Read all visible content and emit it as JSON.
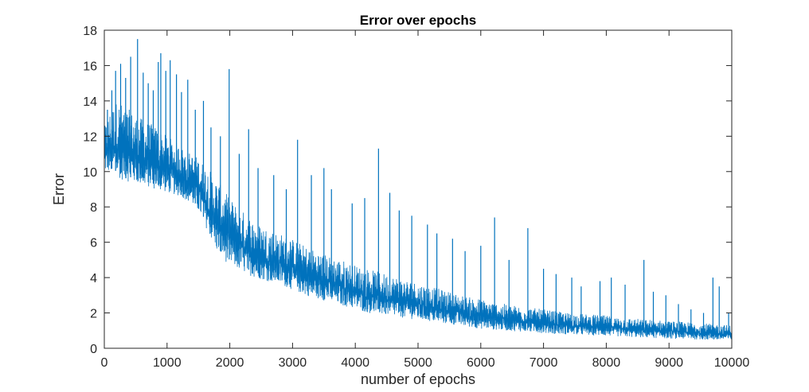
{
  "chart_data": {
    "type": "line",
    "title": "Error over epochs",
    "xlabel": "number of epochs",
    "ylabel": "Error",
    "xlim": [
      0,
      10000
    ],
    "ylim": [
      0,
      18
    ],
    "xticks": [
      0,
      1000,
      2000,
      3000,
      4000,
      5000,
      6000,
      7000,
      8000,
      9000,
      10000
    ],
    "yticks": [
      0,
      2,
      4,
      6,
      8,
      10,
      12,
      14,
      16,
      18
    ],
    "grid": false,
    "box": true,
    "series": [
      {
        "color": "#0072BD",
        "sampling_note_x": [
          0,
          100,
          200,
          300,
          400,
          500,
          600,
          700,
          800,
          900,
          1000,
          1100,
          1200,
          1300,
          1400,
          1500,
          1600,
          1700,
          1800,
          1900,
          2000,
          2200,
          2400,
          2600,
          2800,
          3000,
          3200,
          3400,
          3600,
          3800,
          4000,
          4200,
          4400,
          4600,
          4800,
          5000,
          5200,
          5400,
          5600,
          5800,
          6000,
          6200,
          6400,
          6600,
          6800,
          7000,
          7200,
          7400,
          7600,
          7800,
          8000,
          8200,
          8400,
          8600,
          8800,
          9000,
          9200,
          9400,
          9600,
          9800,
          10000
        ],
        "lower_envelope": [
          10.0,
          9.9,
          9.7,
          9.5,
          9.4,
          9.3,
          9.2,
          9.1,
          9.0,
          8.9,
          8.8,
          8.7,
          8.6,
          8.4,
          8.1,
          7.7,
          7.0,
          6.2,
          5.4,
          5.0,
          4.7,
          4.3,
          4.0,
          3.8,
          3.6,
          3.3,
          3.0,
          2.8,
          2.6,
          2.4,
          2.2,
          2.0,
          1.9,
          1.8,
          1.7,
          1.6,
          1.5,
          1.4,
          1.3,
          1.2,
          1.1,
          1.05,
          1.0,
          0.95,
          0.9,
          0.85,
          0.8,
          0.78,
          0.75,
          0.72,
          0.7,
          0.66,
          0.63,
          0.6,
          0.57,
          0.55,
          0.52,
          0.5,
          0.47,
          0.45,
          0.43
        ],
        "upper_envelope": [
          12.5,
          13.5,
          14.0,
          13.8,
          13.5,
          13.2,
          13.0,
          12.8,
          12.6,
          12.3,
          12.0,
          11.8,
          11.5,
          11.2,
          11.0,
          10.8,
          10.4,
          10.0,
          9.5,
          9.0,
          8.5,
          7.8,
          7.2,
          6.8,
          6.5,
          6.2,
          5.8,
          5.5,
          5.2,
          5.0,
          4.7,
          4.5,
          4.3,
          4.1,
          3.9,
          3.7,
          3.5,
          3.3,
          3.1,
          2.9,
          2.8,
          2.6,
          2.5,
          2.4,
          2.3,
          2.2,
          2.1,
          2.0,
          1.95,
          1.9,
          1.85,
          1.75,
          1.7,
          1.65,
          1.6,
          1.55,
          1.5,
          1.45,
          1.4,
          1.35,
          1.3
        ],
        "spikes": [
          [
            50,
            13.5
          ],
          [
            120,
            14.6
          ],
          [
            180,
            15.7
          ],
          [
            260,
            16.1
          ],
          [
            340,
            15.3
          ],
          [
            420,
            16.5
          ],
          [
            530,
            17.5
          ],
          [
            620,
            15.6
          ],
          [
            700,
            15.0
          ],
          [
            780,
            14.6
          ],
          [
            860,
            16.2
          ],
          [
            900,
            16.7
          ],
          [
            980,
            15.7
          ],
          [
            1050,
            16.3
          ],
          [
            1150,
            15.5
          ],
          [
            1230,
            14.5
          ],
          [
            1330,
            15.2
          ],
          [
            1450,
            13.5
          ],
          [
            1580,
            14.0
          ],
          [
            1700,
            12.5
          ],
          [
            1850,
            12.0
          ],
          [
            1990,
            15.8
          ],
          [
            2150,
            11.0
          ],
          [
            2300,
            12.4
          ],
          [
            2450,
            10.2
          ],
          [
            2700,
            9.8
          ],
          [
            2900,
            9.0
          ],
          [
            3080,
            11.8
          ],
          [
            3300,
            9.8
          ],
          [
            3500,
            10.2
          ],
          [
            3620,
            9.0
          ],
          [
            3950,
            8.2
          ],
          [
            4150,
            8.5
          ],
          [
            4370,
            11.3
          ],
          [
            4550,
            8.8
          ],
          [
            4700,
            7.8
          ],
          [
            4900,
            7.5
          ],
          [
            5150,
            7.0
          ],
          [
            5300,
            6.5
          ],
          [
            5550,
            6.2
          ],
          [
            5750,
            5.5
          ],
          [
            6000,
            5.8
          ],
          [
            6220,
            7.4
          ],
          [
            6450,
            5.0
          ],
          [
            6750,
            6.8
          ],
          [
            7000,
            4.5
          ],
          [
            7200,
            4.2
          ],
          [
            7450,
            4.0
          ],
          [
            7600,
            3.5
          ],
          [
            7900,
            3.8
          ],
          [
            8080,
            4.0
          ],
          [
            8300,
            3.6
          ],
          [
            8600,
            5.0
          ],
          [
            8750,
            3.2
          ],
          [
            8950,
            3.0
          ],
          [
            9150,
            2.5
          ],
          [
            9350,
            2.2
          ],
          [
            9550,
            2.0
          ],
          [
            9700,
            4.0
          ],
          [
            9800,
            3.5
          ],
          [
            9950,
            2.0
          ]
        ]
      }
    ]
  }
}
